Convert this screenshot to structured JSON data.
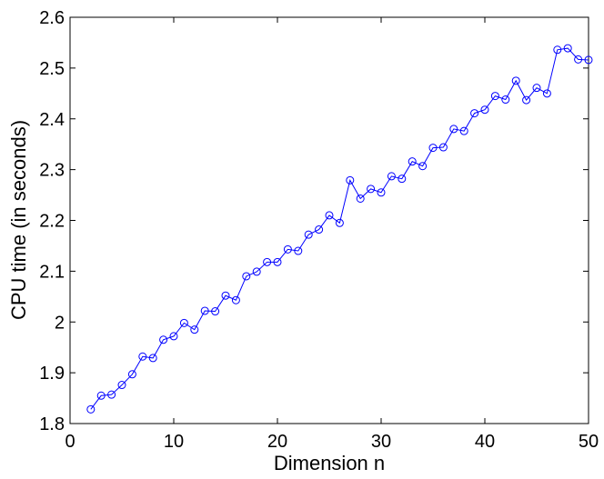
{
  "chart_data": {
    "type": "line",
    "title": "",
    "xlabel": "Dimension n",
    "ylabel": "CPU time (in seconds)",
    "xlim": [
      0,
      50
    ],
    "ylim": [
      1.8,
      2.6
    ],
    "xticks": [
      0,
      10,
      20,
      30,
      40,
      50
    ],
    "xtick_labels": [
      "0",
      "10",
      "20",
      "30",
      "40",
      "50"
    ],
    "yticks": [
      1.8,
      1.9,
      2.0,
      2.1,
      2.2,
      2.3,
      2.4,
      2.5,
      2.6
    ],
    "ytick_labels": [
      "1.8",
      "1.9",
      "2",
      "2.1",
      "2.2",
      "2.3",
      "2.4",
      "2.5",
      "2.6"
    ],
    "grid": false,
    "legend": "none",
    "marker": "circle",
    "line_color": "#0000ff",
    "x": [
      2,
      3,
      4,
      5,
      6,
      7,
      8,
      9,
      10,
      11,
      12,
      13,
      14,
      15,
      16,
      17,
      18,
      19,
      20,
      21,
      22,
      23,
      24,
      25,
      26,
      27,
      28,
      29,
      30,
      31,
      32,
      33,
      34,
      35,
      36,
      37,
      38,
      39,
      40,
      41,
      42,
      43,
      44,
      45,
      46,
      47,
      48,
      49,
      50
    ],
    "y": [
      1.828,
      1.855,
      1.857,
      1.876,
      1.897,
      1.932,
      1.929,
      1.965,
      1.972,
      1.998,
      1.985,
      2.022,
      2.021,
      2.052,
      2.043,
      2.09,
      2.099,
      2.118,
      2.118,
      2.143,
      2.14,
      2.172,
      2.182,
      2.21,
      2.195,
      2.279,
      2.243,
      2.262,
      2.255,
      2.287,
      2.282,
      2.316,
      2.307,
      2.343,
      2.344,
      2.38,
      2.376,
      2.411,
      2.418,
      2.445,
      2.438,
      2.475,
      2.437,
      2.461,
      2.45,
      2.536,
      2.539,
      2.517,
      2.516
    ]
  }
}
